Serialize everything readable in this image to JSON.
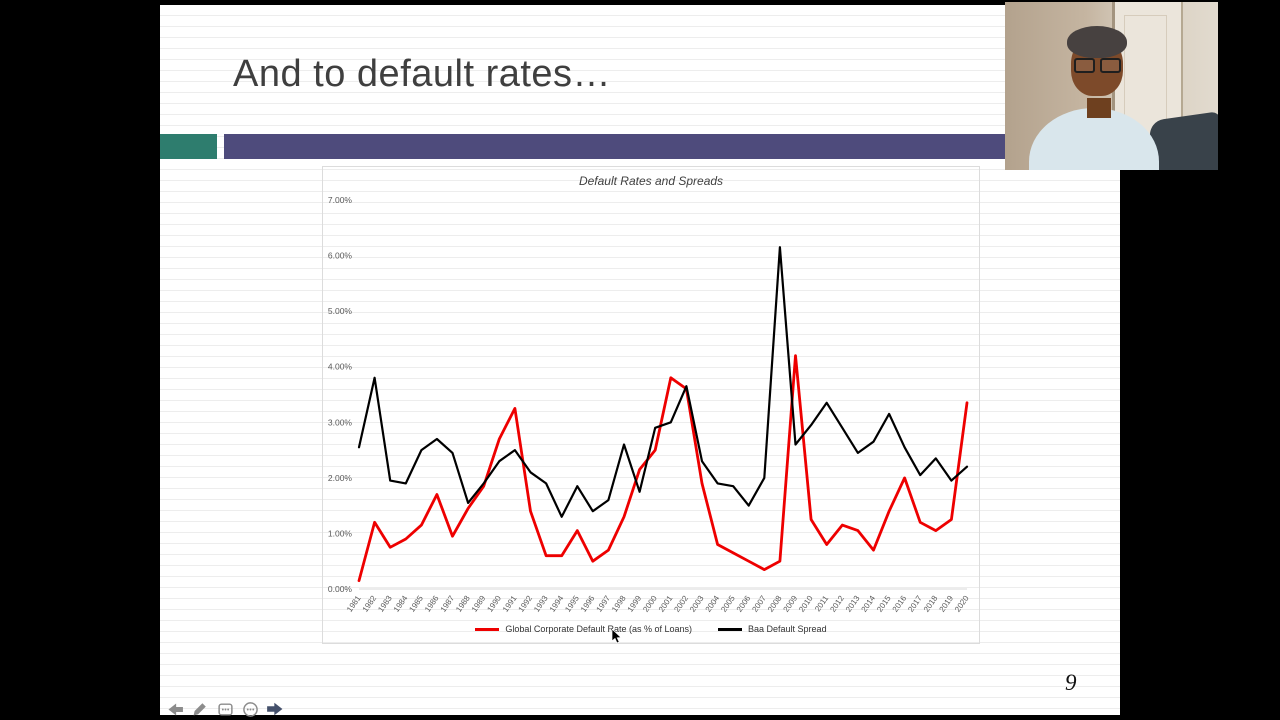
{
  "slide": {
    "title": "And to default rates…",
    "page_number": "9"
  },
  "colors": {
    "accent_teal": "#2e7d6e",
    "accent_purple": "#4e4b7c"
  },
  "toolbar": {
    "icons": [
      "previous-slide-icon",
      "pen-icon",
      "comments-icon",
      "more-options-icon",
      "next-slide-icon"
    ]
  },
  "chart_data": {
    "type": "line",
    "title": "Default Rates and Spreads",
    "xlabel": "",
    "ylabel": "",
    "ylim": [
      0,
      7
    ],
    "grid": false,
    "legend_position": "bottom",
    "yticks": [
      "0.00%",
      "1.00%",
      "2.00%",
      "3.00%",
      "4.00%",
      "5.00%",
      "6.00%",
      "7.00%"
    ],
    "x": [
      1981,
      1982,
      1983,
      1984,
      1985,
      1986,
      1987,
      1988,
      1989,
      1990,
      1991,
      1992,
      1993,
      1994,
      1995,
      1996,
      1997,
      1998,
      1999,
      2000,
      2001,
      2002,
      2003,
      2004,
      2005,
      2006,
      2007,
      2008,
      2009,
      2010,
      2011,
      2012,
      2013,
      2014,
      2015,
      2016,
      2017,
      2018,
      2019,
      2020
    ],
    "series": [
      {
        "name": "Global Corporate Default Rate (as % of Loans)",
        "color": "#ee0000",
        "values": [
          0.15,
          1.2,
          0.75,
          0.9,
          1.15,
          1.7,
          0.95,
          1.45,
          1.85,
          2.7,
          3.25,
          1.4,
          0.6,
          0.6,
          1.05,
          0.5,
          0.7,
          1.3,
          2.15,
          2.5,
          3.8,
          3.6,
          1.9,
          0.8,
          0.65,
          0.5,
          0.35,
          0.5,
          4.2,
          1.25,
          0.8,
          1.15,
          1.05,
          0.7,
          1.4,
          2.0,
          1.2,
          1.05,
          1.25,
          3.35
        ]
      },
      {
        "name": "Baa Default Spread",
        "color": "#000000",
        "values": [
          2.55,
          3.8,
          1.95,
          1.9,
          2.5,
          2.7,
          2.45,
          1.55,
          1.9,
          2.3,
          2.5,
          2.1,
          1.9,
          1.3,
          1.85,
          1.4,
          1.6,
          2.6,
          1.75,
          2.9,
          3.0,
          3.65,
          2.3,
          1.9,
          1.85,
          1.5,
          2.0,
          6.15,
          2.6,
          2.95,
          3.35,
          2.9,
          2.45,
          2.65,
          3.15,
          2.55,
          2.05,
          2.35,
          1.95,
          2.2
        ]
      }
    ]
  }
}
